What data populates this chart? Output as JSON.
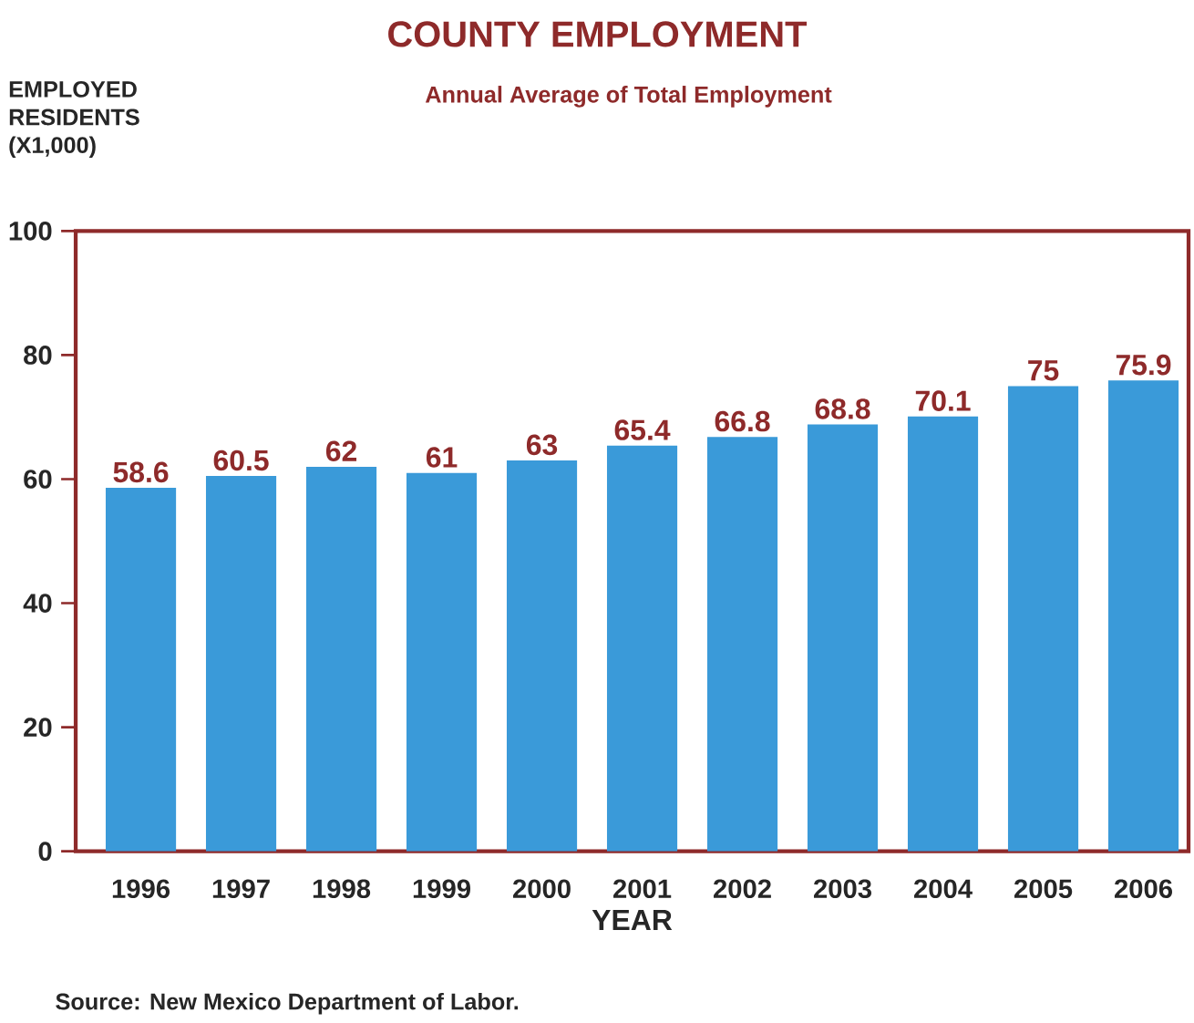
{
  "chart_data": {
    "type": "bar",
    "title": "COUNTY EMPLOYMENT",
    "subtitle": "Annual Average of Total Employment",
    "ylabel": "EMPLOYED RESIDENTS (X1,000)",
    "xlabel": "YEAR",
    "categories": [
      "1996",
      "1997",
      "1998",
      "1999",
      "2000",
      "2001",
      "2002",
      "2003",
      "2004",
      "2005",
      "2006"
    ],
    "values": [
      58.6,
      60.5,
      62,
      61,
      63,
      65.4,
      66.8,
      68.8,
      70.1,
      75,
      75.9
    ],
    "color": "#3a9ad9",
    "ylim": [
      0,
      100
    ],
    "yticks": [
      0,
      20,
      40,
      60,
      80,
      100
    ],
    "data_labels": true,
    "annotations": [
      "Source: New Mexico Department of Labor."
    ]
  }
}
